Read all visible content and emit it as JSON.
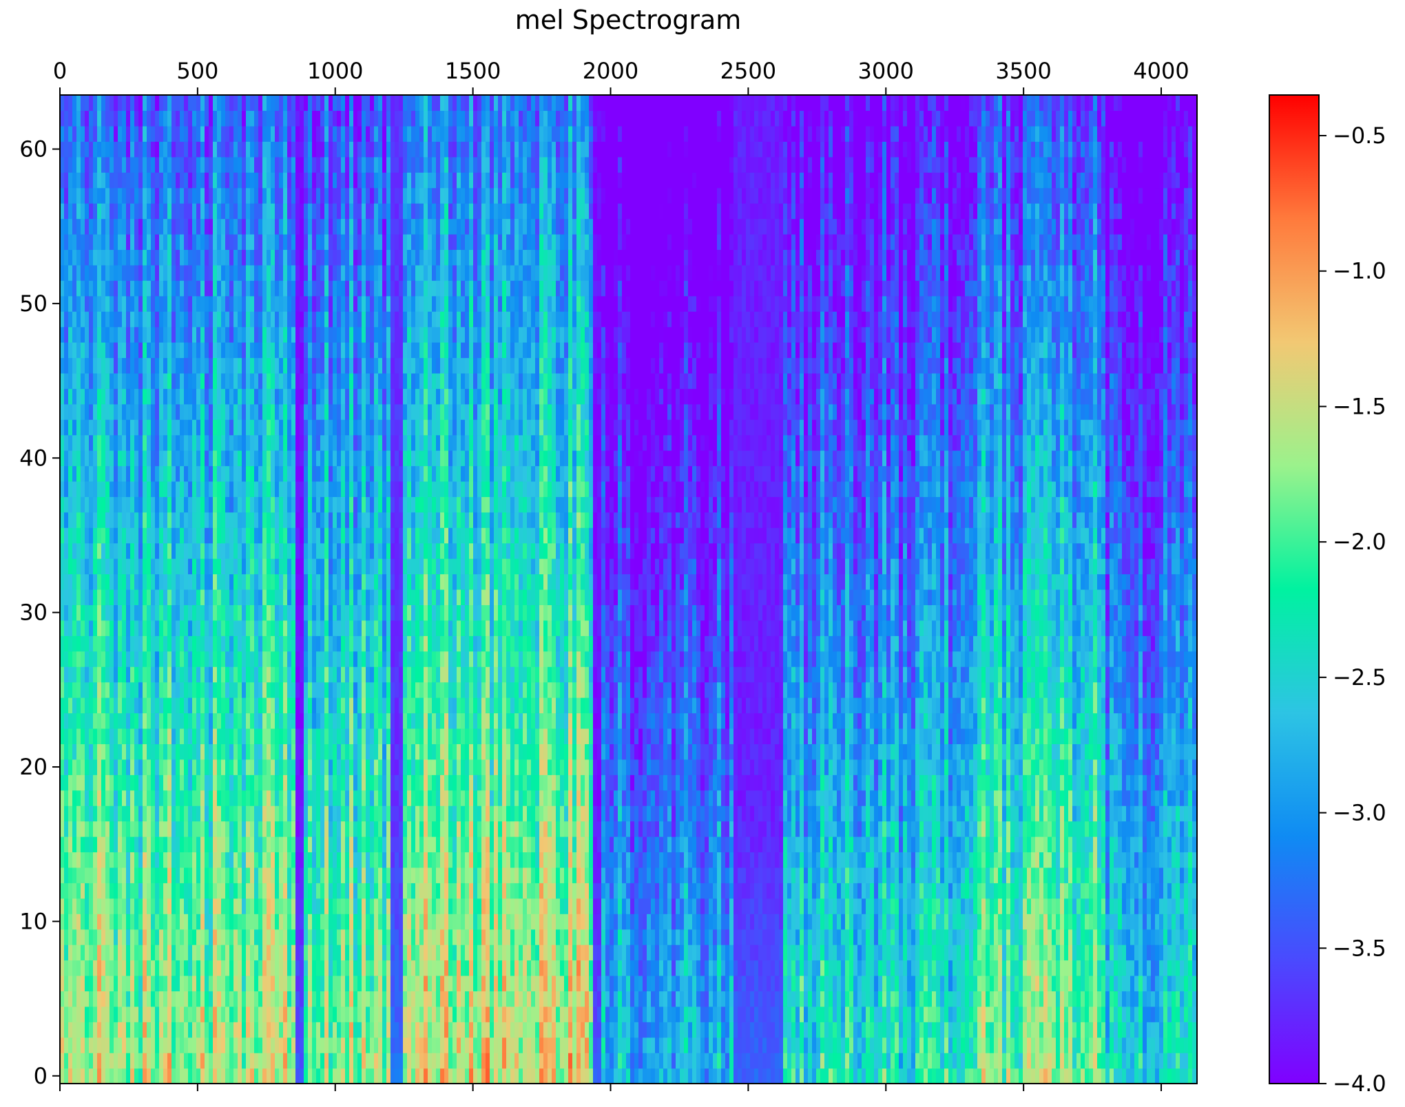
{
  "chart_data": {
    "type": "heatmap",
    "title": "mel Spectrogram",
    "xlabel": "",
    "ylabel": "",
    "x_axis_position": "top",
    "xlim": [
      0,
      4130
    ],
    "ylim": [
      -0.5,
      63.5
    ],
    "n_mel_bins": 64,
    "x_ticks": [
      0,
      500,
      1000,
      1500,
      2000,
      2500,
      3000,
      3500,
      4000
    ],
    "x_tick_labels": [
      "0",
      "500",
      "1000",
      "1500",
      "2000",
      "2500",
      "3000",
      "3500",
      "4000"
    ],
    "y_ticks": [
      0,
      10,
      20,
      30,
      40,
      50,
      60
    ],
    "y_tick_labels": [
      "0",
      "10",
      "20",
      "30",
      "40",
      "50",
      "60"
    ],
    "colormap": "rainbow",
    "colorbar": {
      "position": "right",
      "vmin": -4.0,
      "vmax": -0.35,
      "ticks": [
        -0.5,
        -1.0,
        -1.5,
        -2.0,
        -2.5,
        -3.0,
        -3.5,
        -4.0
      ],
      "tick_labels": [
        "−0.5",
        "−1.0",
        "−1.5",
        "−2.0",
        "−2.5",
        "−3.0",
        "−3.5",
        "−4.0"
      ]
    },
    "column_profile": {
      "description": "approximate low-band level by frame range",
      "segments": [
        {
          "x_start": 0,
          "x_end": 860,
          "level": -1.6
        },
        {
          "x_start": 860,
          "x_end": 890,
          "level": -3.9
        },
        {
          "x_start": 890,
          "x_end": 1200,
          "level": -1.7
        },
        {
          "x_start": 1200,
          "x_end": 1250,
          "level": -3.7
        },
        {
          "x_start": 1250,
          "x_end": 1930,
          "level": -1.4
        },
        {
          "x_start": 1930,
          "x_end": 1970,
          "level": -3.9
        },
        {
          "x_start": 1970,
          "x_end": 2440,
          "level": -2.7
        },
        {
          "x_start": 2440,
          "x_end": 2620,
          "level": -3.8
        },
        {
          "x_start": 2620,
          "x_end": 3300,
          "level": -2.3
        },
        {
          "x_start": 3300,
          "x_end": 3800,
          "level": -1.8
        },
        {
          "x_start": 3800,
          "x_end": 4130,
          "level": -2.4
        }
      ]
    }
  }
}
